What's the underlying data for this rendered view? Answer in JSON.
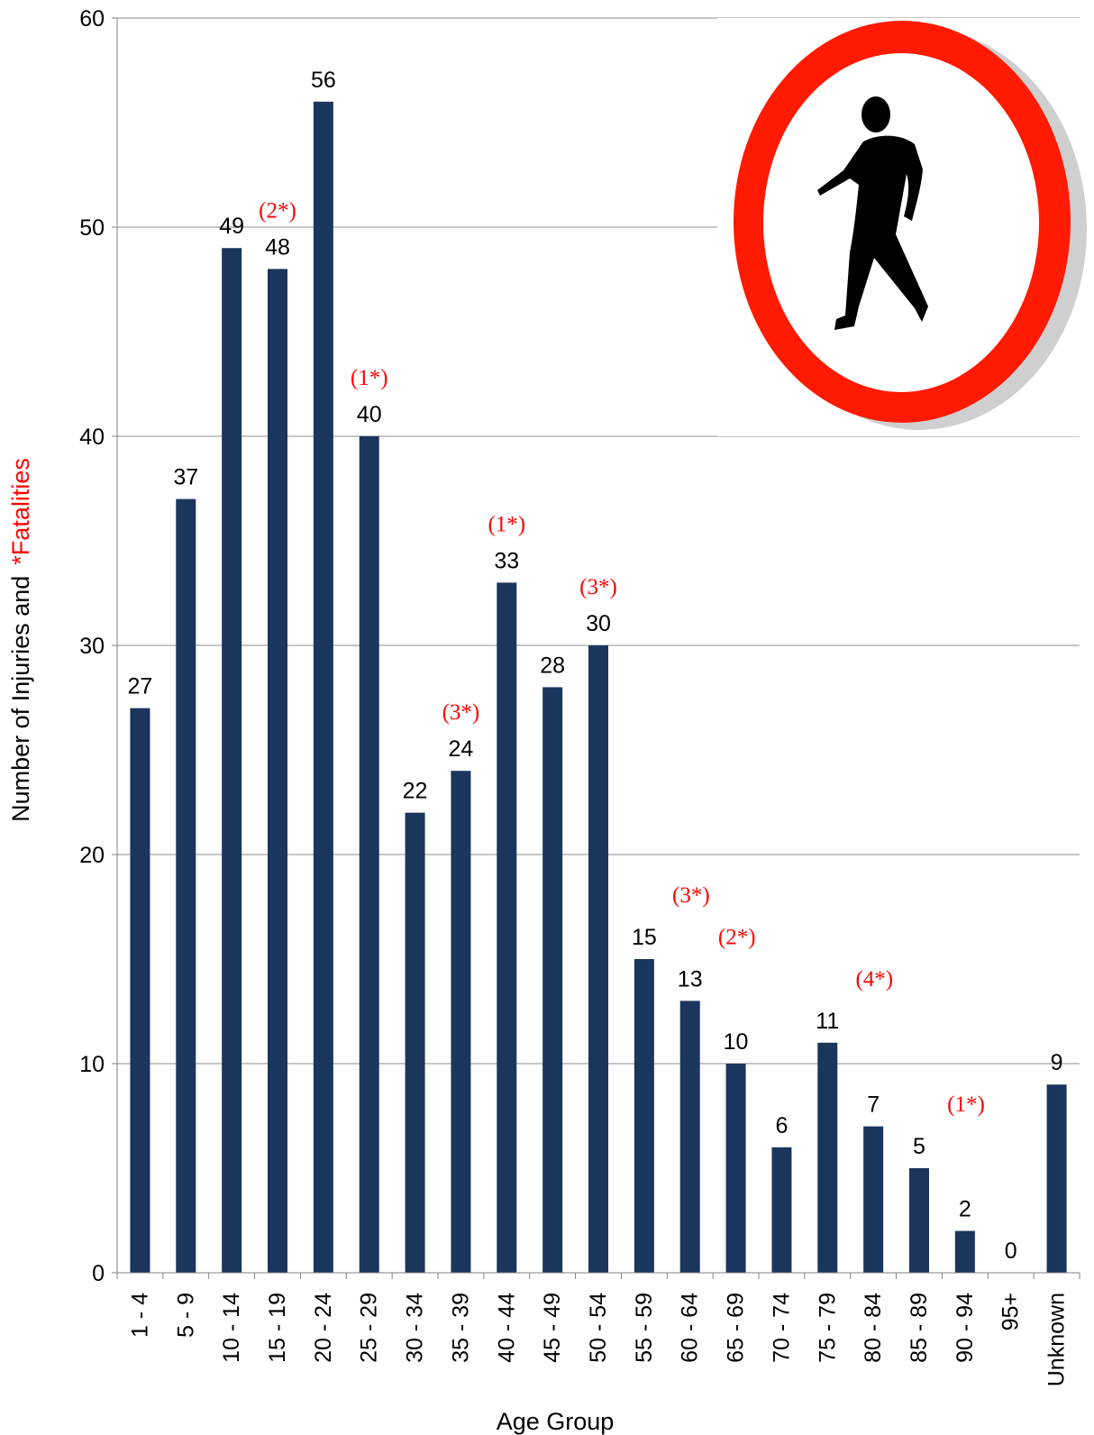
{
  "chart_data": {
    "type": "bar",
    "title": "",
    "xlabel": "Age Group",
    "ylabel_parts": [
      "Number of Injuries and",
      "*Fatalities"
    ],
    "ylim": [
      0,
      60
    ],
    "yticks": [
      0,
      10,
      20,
      30,
      40,
      50,
      60
    ],
    "grid": true,
    "categories": [
      "1 - 4",
      "5 - 9",
      "10 - 14",
      "15 - 19",
      "20 - 24",
      "25 - 29",
      "30 - 34",
      "35 - 39",
      "40 - 44",
      "45 - 49",
      "50 - 54",
      "55 - 59",
      "60 - 64",
      "65 - 69",
      "70 - 74",
      "75 - 79",
      "80 - 84",
      "85 - 89",
      "90 - 94",
      "95+",
      "Unknown"
    ],
    "values": [
      27,
      37,
      49,
      48,
      56,
      40,
      22,
      24,
      33,
      28,
      30,
      15,
      13,
      10,
      6,
      11,
      7,
      5,
      2,
      0,
      9
    ],
    "fatalities": [
      null,
      null,
      null,
      "(2*)",
      null,
      "(1*)",
      null,
      "(3*)",
      "(1*)",
      null,
      "(3*)",
      "(3*)",
      "(2*)",
      null,
      null,
      "(4*)",
      null,
      "(1*)",
      null,
      null,
      null
    ],
    "colors": {
      "bar": "#1b365d",
      "fatal": "#ff0000",
      "grid": "#8c8c8c"
    },
    "image": {
      "icon": "pedestrian-prohibited-sign-icon",
      "ring_color": "#ff1a00",
      "figure_color": "#000000"
    }
  }
}
